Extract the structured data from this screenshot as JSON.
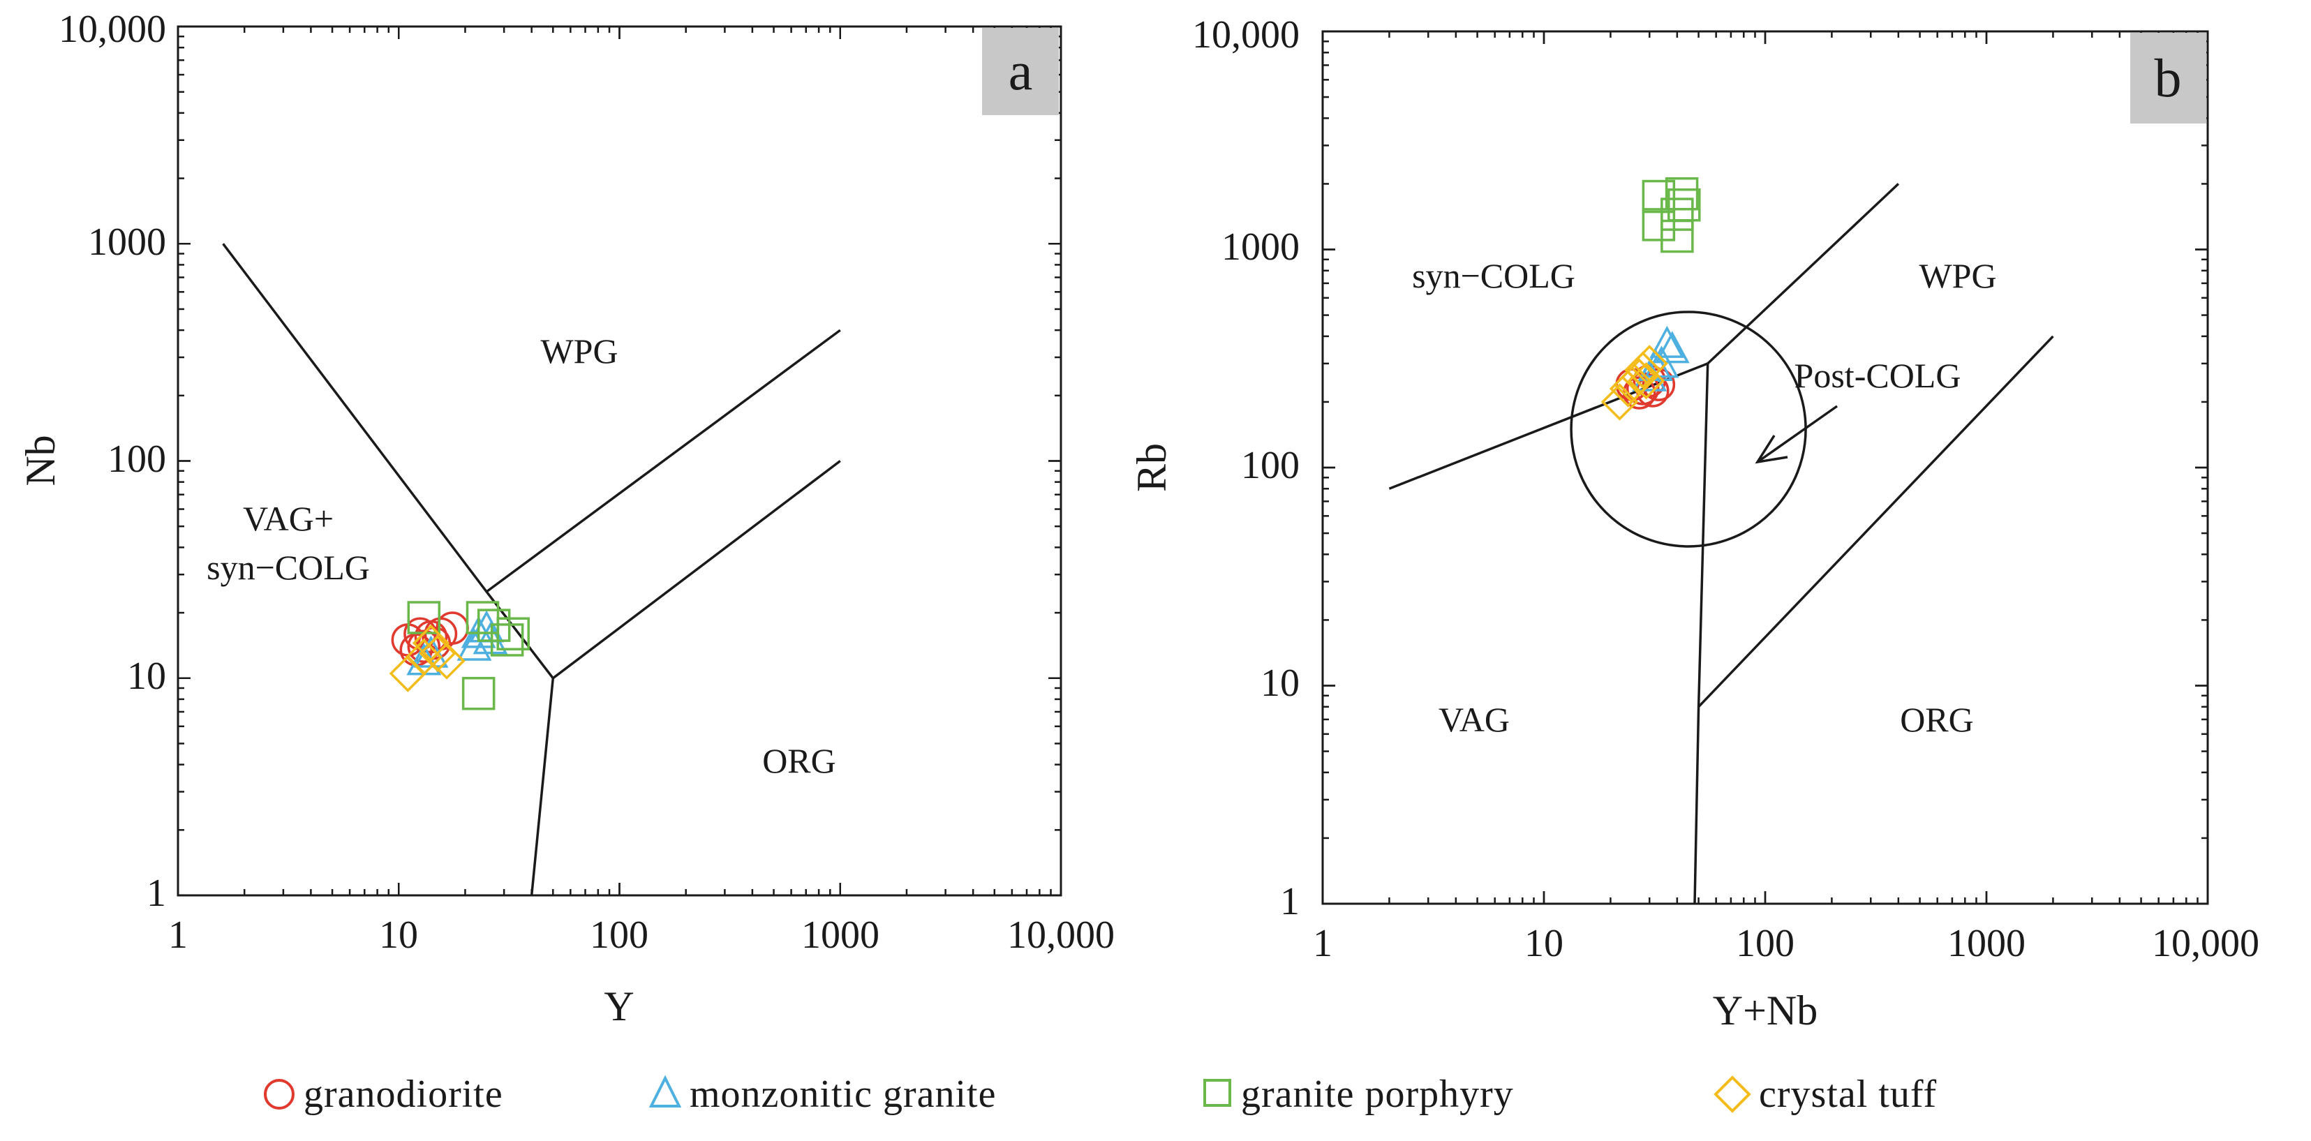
{
  "chart_data": [
    {
      "panel": "a",
      "type": "scatter",
      "xlabel": "Y",
      "ylabel": "Nb",
      "xscale": "log",
      "yscale": "log",
      "xlim": [
        1,
        10000
      ],
      "ylim": [
        1,
        10000
      ],
      "xticklabels": [
        "1",
        "10",
        "100",
        "1000",
        "10,000"
      ],
      "yticklabels": [
        "1",
        "10",
        "100",
        "1000",
        "10,000"
      ],
      "boundaries": [
        {
          "name": "VAG-WPG boundary",
          "points": [
            [
              1.6,
              1000
            ],
            [
              25,
              25
            ],
            [
              50,
              10
            ],
            [
              40,
              1
            ]
          ]
        },
        {
          "name": "WPG-ORG upper",
          "points": [
            [
              25,
              25
            ],
            [
              1000,
              400
            ]
          ]
        },
        {
          "name": "WPG-ORG lower",
          "points": [
            [
              50,
              10
            ],
            [
              1000,
              100
            ]
          ]
        }
      ],
      "fields": [
        {
          "label": "WPG",
          "x": 60,
          "y": 500
        },
        {
          "label": "VAG+",
          "x": 3.5,
          "y": 68
        },
        {
          "label": "syn−COLG",
          "x": 4,
          "y": 40
        },
        {
          "label": "ORG",
          "x": 400,
          "y": 4.5
        }
      ],
      "series": [
        {
          "name": "granodiorite",
          "marker": "circle",
          "color": "#e03a2e",
          "points": [
            [
              11,
              15
            ],
            [
              12.5,
              16
            ],
            [
              14,
              15.5
            ],
            [
              15.5,
              16
            ],
            [
              17.5,
              17
            ],
            [
              13,
              14
            ],
            [
              14.5,
              14.5
            ],
            [
              12,
              13.5
            ]
          ]
        },
        {
          "name": "monzonitic granite",
          "marker": "triangle",
          "color": "#4eb0e0",
          "points": [
            [
              13,
              12
            ],
            [
              14,
              13
            ],
            [
              23,
              16
            ],
            [
              25,
              17
            ],
            [
              26,
              15
            ],
            [
              22,
              14
            ]
          ]
        },
        {
          "name": "granite porphyry",
          "marker": "square",
          "color": "#6ab84a",
          "points": [
            [
              13,
              19
            ],
            [
              24,
              19
            ],
            [
              27,
              17.5
            ],
            [
              33,
              16
            ],
            [
              31,
              15
            ],
            [
              23,
              8.5
            ]
          ]
        },
        {
          "name": "crystal tuff",
          "marker": "diamond",
          "color": "#f3bc1a",
          "points": [
            [
              11,
              10.5
            ],
            [
              13,
              12.5
            ],
            [
              15,
              13
            ],
            [
              16.5,
              12
            ],
            [
              14,
              14.5
            ]
          ]
        }
      ]
    },
    {
      "panel": "b",
      "type": "scatter",
      "xlabel": "Y+Nb",
      "ylabel": "Rb",
      "xscale": "log",
      "yscale": "log",
      "xlim": [
        1,
        10000
      ],
      "ylim": [
        1,
        10000
      ],
      "xticklabels": [
        "1",
        "10",
        "100",
        "1000",
        "10,000"
      ],
      "yticklabels": [
        "1",
        "10",
        "100",
        "1000",
        "10,000"
      ],
      "boundaries": [
        {
          "name": "VAG-syn-COLG",
          "points": [
            [
              2,
              80
            ],
            [
              55,
              300
            ]
          ]
        },
        {
          "name": "syn-COLG-WPG",
          "points": [
            [
              55,
              300
            ],
            [
              400,
              2000
            ]
          ]
        },
        {
          "name": "VAG-ORG",
          "points": [
            [
              55,
              300
            ],
            [
              50,
              8
            ],
            [
              48,
              1
            ]
          ]
        },
        {
          "name": "WPG-ORG",
          "points": [
            [
              50,
              8
            ],
            [
              2000,
              400
            ]
          ]
        }
      ],
      "post_colg_circle": {
        "center": [
          45,
          150
        ],
        "note": "Post-COLG field"
      },
      "fields": [
        {
          "label": "syn−COLG",
          "x": 6,
          "y": 850
        },
        {
          "label": "WPG",
          "x": 450,
          "y": 850
        },
        {
          "label": "Post-COLG",
          "x": 200,
          "y": 430
        },
        {
          "label": "VAG",
          "x": 4,
          "y": 6.5
        },
        {
          "label": "ORG",
          "x": 430,
          "y": 6.5
        }
      ],
      "series": [
        {
          "name": "granodiorite",
          "marker": "circle",
          "color": "#e03a2e",
          "points": [
            [
              25,
              240
            ],
            [
              28,
              230
            ],
            [
              30,
              250
            ],
            [
              33,
              240
            ],
            [
              27,
              220
            ],
            [
              31,
              225
            ]
          ]
        },
        {
          "name": "monzonitic granite",
          "marker": "triangle",
          "color": "#4eb0e0",
          "points": [
            [
              36,
              370
            ],
            [
              38,
              350
            ],
            [
              32,
              290
            ],
            [
              30,
              260
            ],
            [
              34,
              300
            ]
          ]
        },
        {
          "name": "granite porphyry",
          "marker": "square",
          "color": "#6ab84a",
          "points": [
            [
              33,
              1750
            ],
            [
              42,
              1800
            ],
            [
              43,
              1600
            ],
            [
              40,
              1450
            ],
            [
              33,
              1300
            ],
            [
              40,
              1150
            ]
          ]
        },
        {
          "name": "crystal tuff",
          "marker": "diamond",
          "color": "#f3bc1a",
          "points": [
            [
              22,
              200
            ],
            [
              25,
              240
            ],
            [
              27,
              260
            ],
            [
              28,
              280
            ],
            [
              30,
              300
            ],
            [
              24,
              230
            ],
            [
              29,
              250
            ]
          ]
        }
      ]
    }
  ],
  "legend": [
    {
      "label": "granodiorite",
      "marker": "circle",
      "color": "#e03a2e"
    },
    {
      "label": "monzonitic granite",
      "marker": "triangle",
      "color": "#4eb0e0"
    },
    {
      "label": "granite porphyry",
      "marker": "square",
      "color": "#6ab84a"
    },
    {
      "label": "crystal tuff",
      "marker": "diamond",
      "color": "#f3bc1a"
    }
  ]
}
